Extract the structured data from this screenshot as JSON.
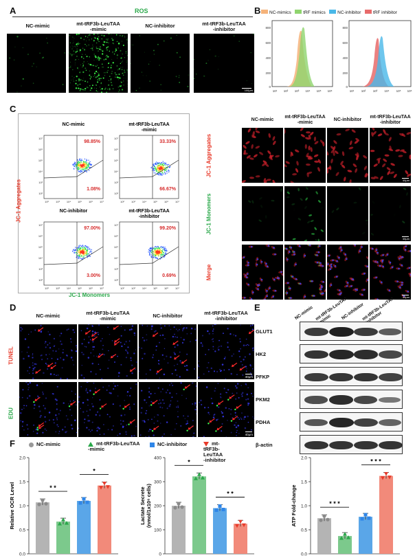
{
  "panels": {
    "a": "A",
    "b": "B",
    "c": "C",
    "d": "D",
    "e": "E",
    "f": "F"
  },
  "groups": [
    "NC-mimic",
    "mt-tRF3b-LeuTAA\n-mimic",
    "NC-inhibitor",
    "mt-tRF3b-LeuTAA\n-inhibitor"
  ],
  "a": {
    "title": "ROS",
    "scale": "100μm"
  },
  "b": {
    "legend": [
      {
        "label": "NC-mimics",
        "color": "#f5b37a"
      },
      {
        "label": "tRF  mimics",
        "color": "#8fd46e"
      },
      {
        "label": "NC-inhibitor",
        "color": "#4ab8e8"
      },
      {
        "label": "tRF  inhibitor",
        "color": "#e86b6b"
      }
    ],
    "yticks": [
      "800",
      "600",
      "400",
      "200",
      "0"
    ],
    "xticks": [
      "10¹",
      "10²",
      "10³",
      "10⁴",
      "10⁵",
      "10⁶"
    ]
  },
  "c": {
    "ylabel": "JC-1 Aggregates",
    "xlabel": "JC-1 Monomers",
    "quadrants": [
      {
        "group": "NC-mimic",
        "upper": "98.85%",
        "lower": "1.08%"
      },
      {
        "group": "mt-tRF3b-LeuTAA\n-mimic",
        "upper": "33.33%",
        "lower": "66.67%"
      },
      {
        "group": "NC-inhibitor",
        "upper": "97.00%",
        "lower": "3.00%"
      },
      {
        "group": "mt-tRF3b-LeuTAA\n-inhibitor",
        "upper": "99.20%",
        "lower": "0.69%"
      }
    ],
    "rows": [
      "JC-1 Aggregates",
      "JC-1 Monomers",
      "Merge"
    ],
    "scale": "40μm",
    "yticks": [
      "10⁷",
      "10⁶",
      "10⁵",
      "10⁴",
      "10³",
      "10²"
    ],
    "xticks": [
      "10²",
      "10³",
      "10⁴",
      "10⁵",
      "10⁶",
      "10⁷"
    ]
  },
  "d": {
    "rows": [
      "TUNEL",
      "EDU"
    ],
    "scale": "40μm"
  },
  "e": {
    "columns": [
      "NC-mimic",
      "mt-tRF3b-LeuTAA\n-mimic",
      "NC-inhibitor",
      "mt-tRF3b-LeuTAA\n-inhibitor"
    ],
    "blots": [
      {
        "label": "GLUT1",
        "levels": [
          0.8,
          1.0,
          0.8,
          0.55
        ]
      },
      {
        "label": "HK2",
        "levels": [
          0.85,
          0.95,
          0.9,
          0.7
        ]
      },
      {
        "label": "PFKP",
        "levels": [
          0.8,
          0.85,
          0.85,
          0.75
        ]
      },
      {
        "label": "PKM2",
        "levels": [
          0.65,
          0.9,
          0.7,
          0.35
        ]
      },
      {
        "label": "PDHA",
        "levels": [
          0.6,
          0.95,
          0.75,
          0.5
        ]
      },
      {
        "label": "β-actin",
        "levels": [
          0.85,
          0.85,
          0.85,
          0.85
        ]
      }
    ]
  },
  "f": {
    "legend": [
      {
        "label": "NC-mimic",
        "color": "#999999",
        "shape": "circle"
      },
      {
        "label": "mt-tRF3b-LeuTAA\n-mimic",
        "color": "#2aa84a",
        "shape": "triangle"
      },
      {
        "label": "NC-inhibitor",
        "color": "#2f86e8",
        "shape": "square"
      },
      {
        "label": "mt-tRF3b-LeuTAA\n-inhibitor",
        "color": "#e83a2a",
        "shape": "tri-down"
      }
    ],
    "ocr": {
      "ylabel": "Relative OCR  Level",
      "yticks": [
        "0.0",
        "0.5",
        "1.0",
        "1.5",
        "2.0"
      ],
      "ymax": 2.0,
      "values": [
        1.07,
        0.67,
        1.1,
        1.42
      ],
      "sig": [
        "* *",
        "*"
      ]
    },
    "lactate": {
      "ylabel": "Lactate Secrete\n(nmol/1x10⁶ cells)",
      "yticks": [
        "0",
        "100",
        "200",
        "300",
        "400"
      ],
      "ymax": 400,
      "values": [
        200,
        322,
        190,
        125
      ],
      "sig": [
        "*",
        "* *"
      ]
    },
    "atp": {
      "ylabel": "ATP  Fold-change",
      "yticks": [
        "0.0",
        "0.5",
        "1.0",
        "1.5",
        "2.0"
      ],
      "ymax": 2.0,
      "values": [
        0.74,
        0.37,
        0.77,
        1.62
      ],
      "sig": [
        "* * *",
        "* * *"
      ]
    },
    "colors": [
      "#b4b4b4",
      "#7cc98c",
      "#5aa6e8",
      "#f28a7a"
    ]
  }
}
